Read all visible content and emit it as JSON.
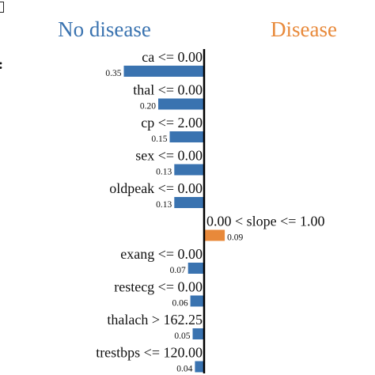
{
  "colors": {
    "negative": "#3a73b0",
    "positive": "#e8893a",
    "axis": "#000000"
  },
  "chart_data": {
    "type": "bar",
    "orientation": "horizontal",
    "legend": {
      "negative_label": "No disease",
      "positive_label": "Disease",
      "placement": "top"
    },
    "items": [
      {
        "label": "ca <= 0.00",
        "value": -0.35,
        "value_label": "0.35"
      },
      {
        "label": "thal <= 0.00",
        "value": -0.2,
        "value_label": "0.20"
      },
      {
        "label": "cp <= 2.00",
        "value": -0.15,
        "value_label": "0.15"
      },
      {
        "label": "sex <= 0.00",
        "value": -0.13,
        "value_label": "0.13"
      },
      {
        "label": "oldpeak <= 0.00",
        "value": -0.13,
        "value_label": "0.13"
      },
      {
        "label": "0.00 < slope <= 1.00",
        "value": 0.09,
        "value_label": "0.09"
      },
      {
        "label": "exang <= 0.00",
        "value": -0.07,
        "value_label": "0.07"
      },
      {
        "label": "restecg <= 0.00",
        "value": -0.06,
        "value_label": "0.06"
      },
      {
        "label": "thalach > 162.25",
        "value": -0.05,
        "value_label": "0.05"
      },
      {
        "label": "trestbps <= 120.00",
        "value": -0.04,
        "value_label": "0.04"
      }
    ],
    "grid": false
  }
}
